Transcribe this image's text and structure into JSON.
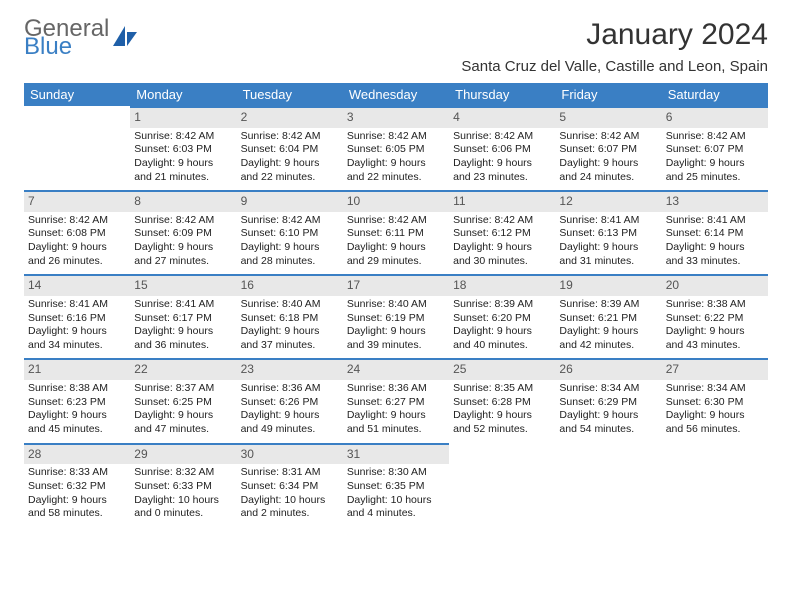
{
  "logo": {
    "line1": "General",
    "line2": "Blue",
    "icon_color": "#1f5fa8"
  },
  "title": "January 2024",
  "location": "Santa Cruz del Valle, Castille and Leon, Spain",
  "colors": {
    "header_bg": "#3a7fc4",
    "header_text": "#ffffff",
    "daynum_bg": "#e8e8e8",
    "daynum_border": "#3a7fc4",
    "body_bg": "#ffffff",
    "text": "#222222"
  },
  "weekdays": [
    "Sunday",
    "Monday",
    "Tuesday",
    "Wednesday",
    "Thursday",
    "Friday",
    "Saturday"
  ],
  "weeks": [
    [
      null,
      {
        "n": "1",
        "sr": "8:42 AM",
        "ss": "6:03 PM",
        "dl": "9 hours and 21 minutes."
      },
      {
        "n": "2",
        "sr": "8:42 AM",
        "ss": "6:04 PM",
        "dl": "9 hours and 22 minutes."
      },
      {
        "n": "3",
        "sr": "8:42 AM",
        "ss": "6:05 PM",
        "dl": "9 hours and 22 minutes."
      },
      {
        "n": "4",
        "sr": "8:42 AM",
        "ss": "6:06 PM",
        "dl": "9 hours and 23 minutes."
      },
      {
        "n": "5",
        "sr": "8:42 AM",
        "ss": "6:07 PM",
        "dl": "9 hours and 24 minutes."
      },
      {
        "n": "6",
        "sr": "8:42 AM",
        "ss": "6:07 PM",
        "dl": "9 hours and 25 minutes."
      }
    ],
    [
      {
        "n": "7",
        "sr": "8:42 AM",
        "ss": "6:08 PM",
        "dl": "9 hours and 26 minutes."
      },
      {
        "n": "8",
        "sr": "8:42 AM",
        "ss": "6:09 PM",
        "dl": "9 hours and 27 minutes."
      },
      {
        "n": "9",
        "sr": "8:42 AM",
        "ss": "6:10 PM",
        "dl": "9 hours and 28 minutes."
      },
      {
        "n": "10",
        "sr": "8:42 AM",
        "ss": "6:11 PM",
        "dl": "9 hours and 29 minutes."
      },
      {
        "n": "11",
        "sr": "8:42 AM",
        "ss": "6:12 PM",
        "dl": "9 hours and 30 minutes."
      },
      {
        "n": "12",
        "sr": "8:41 AM",
        "ss": "6:13 PM",
        "dl": "9 hours and 31 minutes."
      },
      {
        "n": "13",
        "sr": "8:41 AM",
        "ss": "6:14 PM",
        "dl": "9 hours and 33 minutes."
      }
    ],
    [
      {
        "n": "14",
        "sr": "8:41 AM",
        "ss": "6:16 PM",
        "dl": "9 hours and 34 minutes."
      },
      {
        "n": "15",
        "sr": "8:41 AM",
        "ss": "6:17 PM",
        "dl": "9 hours and 36 minutes."
      },
      {
        "n": "16",
        "sr": "8:40 AM",
        "ss": "6:18 PM",
        "dl": "9 hours and 37 minutes."
      },
      {
        "n": "17",
        "sr": "8:40 AM",
        "ss": "6:19 PM",
        "dl": "9 hours and 39 minutes."
      },
      {
        "n": "18",
        "sr": "8:39 AM",
        "ss": "6:20 PM",
        "dl": "9 hours and 40 minutes."
      },
      {
        "n": "19",
        "sr": "8:39 AM",
        "ss": "6:21 PM",
        "dl": "9 hours and 42 minutes."
      },
      {
        "n": "20",
        "sr": "8:38 AM",
        "ss": "6:22 PM",
        "dl": "9 hours and 43 minutes."
      }
    ],
    [
      {
        "n": "21",
        "sr": "8:38 AM",
        "ss": "6:23 PM",
        "dl": "9 hours and 45 minutes."
      },
      {
        "n": "22",
        "sr": "8:37 AM",
        "ss": "6:25 PM",
        "dl": "9 hours and 47 minutes."
      },
      {
        "n": "23",
        "sr": "8:36 AM",
        "ss": "6:26 PM",
        "dl": "9 hours and 49 minutes."
      },
      {
        "n": "24",
        "sr": "8:36 AM",
        "ss": "6:27 PM",
        "dl": "9 hours and 51 minutes."
      },
      {
        "n": "25",
        "sr": "8:35 AM",
        "ss": "6:28 PM",
        "dl": "9 hours and 52 minutes."
      },
      {
        "n": "26",
        "sr": "8:34 AM",
        "ss": "6:29 PM",
        "dl": "9 hours and 54 minutes."
      },
      {
        "n": "27",
        "sr": "8:34 AM",
        "ss": "6:30 PM",
        "dl": "9 hours and 56 minutes."
      }
    ],
    [
      {
        "n": "28",
        "sr": "8:33 AM",
        "ss": "6:32 PM",
        "dl": "9 hours and 58 minutes."
      },
      {
        "n": "29",
        "sr": "8:32 AM",
        "ss": "6:33 PM",
        "dl": "10 hours and 0 minutes."
      },
      {
        "n": "30",
        "sr": "8:31 AM",
        "ss": "6:34 PM",
        "dl": "10 hours and 2 minutes."
      },
      {
        "n": "31",
        "sr": "8:30 AM",
        "ss": "6:35 PM",
        "dl": "10 hours and 4 minutes."
      },
      null,
      null,
      null
    ]
  ],
  "labels": {
    "sunrise": "Sunrise:",
    "sunset": "Sunset:",
    "daylight": "Daylight:"
  }
}
